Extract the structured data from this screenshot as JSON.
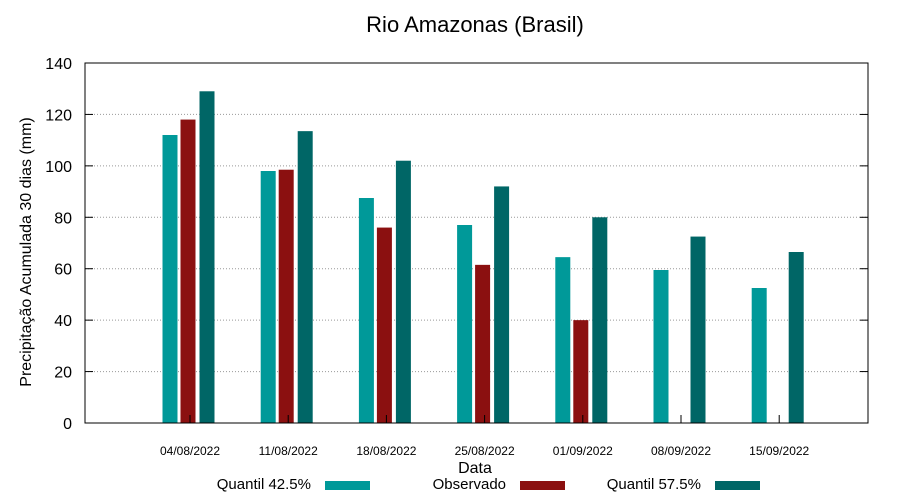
{
  "chart_data": {
    "type": "bar",
    "title": "Rio Amazonas (Brasil)",
    "xlabel": "Data",
    "ylabel": "Precipitação Acumulada 30 dias (mm)",
    "ylim": [
      0,
      140
    ],
    "yticks": [
      0,
      20,
      40,
      60,
      80,
      100,
      120,
      140
    ],
    "grid": true,
    "legend_position": "bottom",
    "categories": [
      "04/08/2022",
      "11/08/2022",
      "18/08/2022",
      "25/08/2022",
      "01/09/2022",
      "08/09/2022",
      "15/09/2022"
    ],
    "series": [
      {
        "name": "Quantil 42.5%",
        "color": "#009999",
        "values": [
          112,
          98,
          87.5,
          77,
          64.5,
          59.5,
          52.5
        ]
      },
      {
        "name": "Observado",
        "color": "#8b1010",
        "values": [
          118,
          98.5,
          76,
          61.5,
          40,
          null,
          null
        ]
      },
      {
        "name": "Quantil 57.5%",
        "color": "#006666",
        "values": [
          129,
          113.5,
          102,
          92,
          80,
          72.5,
          66.5
        ]
      }
    ]
  }
}
